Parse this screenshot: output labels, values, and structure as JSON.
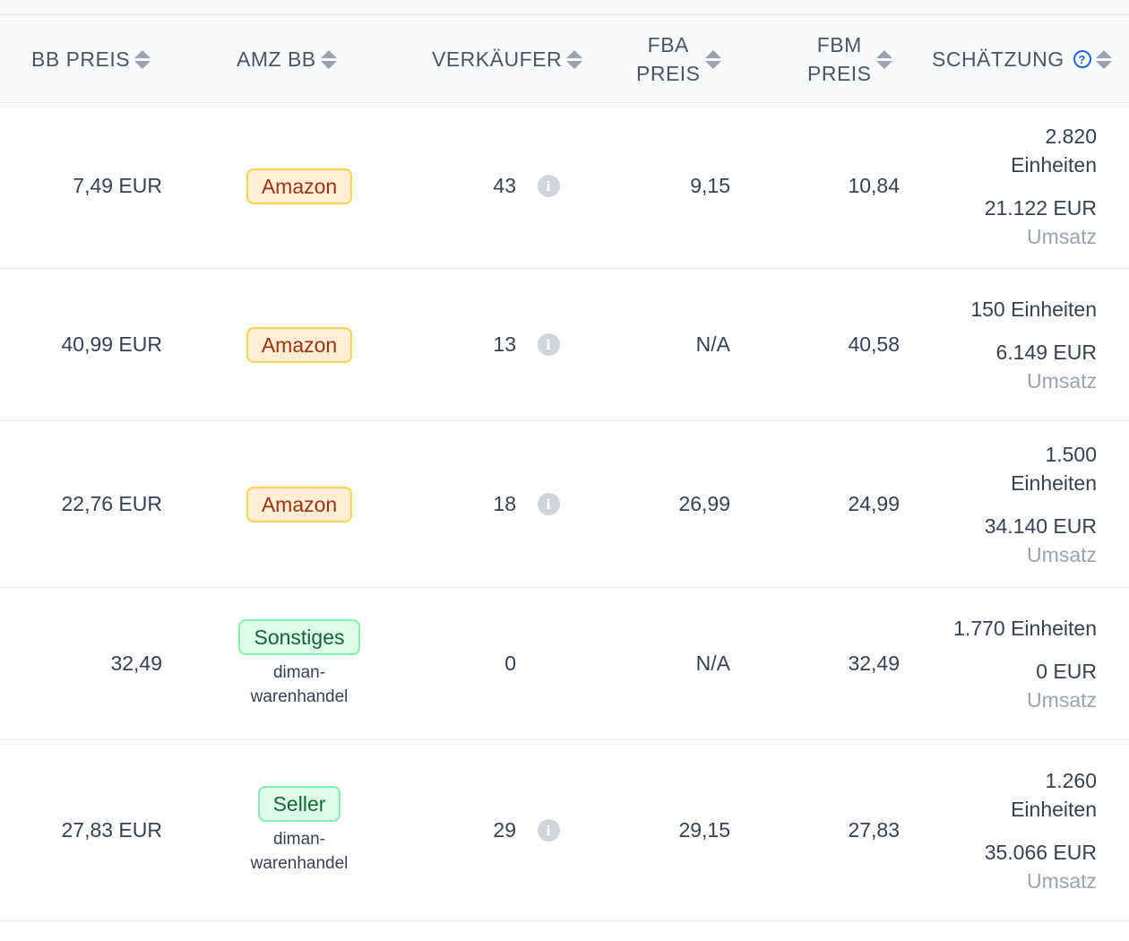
{
  "columns": {
    "bb_preis": "BB PREIS",
    "amz_bb": "AMZ BB",
    "verkaeufer": "VERKÄUFER",
    "fba_preis_1": "FBA",
    "fba_preis_2": "PREIS",
    "fbm_preis_1": "FBM",
    "fbm_preis_2": "PREIS",
    "schaetzung": "SCHÄTZUNG"
  },
  "rows": [
    {
      "bb_preis": "7,49 EUR",
      "amz_bb_badge": "Amazon",
      "amz_bb_type": "amazon",
      "amz_bb_seller_1": "",
      "amz_bb_seller_2": "",
      "verkaeufer": "43",
      "fba_preis": "9,15",
      "fbm_preis": "10,84",
      "units_1": "2.820",
      "units_2": "Einheiten",
      "revenue": "21.122 EUR",
      "revenue_label": "Umsatz"
    },
    {
      "bb_preis": "40,99 EUR",
      "amz_bb_badge": "Amazon",
      "amz_bb_type": "amazon",
      "amz_bb_seller_1": "",
      "amz_bb_seller_2": "",
      "verkaeufer": "13",
      "fba_preis": "N/A",
      "fbm_preis": "40,58",
      "units_1": "150 Einheiten",
      "units_2": "",
      "revenue": "6.149 EUR",
      "revenue_label": "Umsatz"
    },
    {
      "bb_preis": "22,76 EUR",
      "amz_bb_badge": "Amazon",
      "amz_bb_type": "amazon",
      "amz_bb_seller_1": "",
      "amz_bb_seller_2": "",
      "verkaeufer": "18",
      "fba_preis": "26,99",
      "fbm_preis": "24,99",
      "units_1": "1.500",
      "units_2": "Einheiten",
      "revenue": "34.140 EUR",
      "revenue_label": "Umsatz"
    },
    {
      "bb_preis": "32,49",
      "amz_bb_badge": "Sonstiges",
      "amz_bb_type": "green",
      "amz_bb_seller_1": "diman-",
      "amz_bb_seller_2": "warenhandel",
      "verkaeufer": "0",
      "fba_preis": "N/A",
      "fbm_preis": "32,49",
      "units_1": "1.770 Einheiten",
      "units_2": "",
      "revenue": "0 EUR",
      "revenue_label": "Umsatz"
    },
    {
      "bb_preis": "27,83 EUR",
      "amz_bb_badge": "Seller",
      "amz_bb_type": "green",
      "amz_bb_seller_1": "diman-",
      "amz_bb_seller_2": "warenhandel",
      "verkaeufer": "29",
      "fba_preis": "29,15",
      "fbm_preis": "27,83",
      "units_1": "1.260",
      "units_2": "Einheiten",
      "revenue": "35.066 EUR",
      "revenue_label": "Umsatz"
    }
  ],
  "icons": {
    "sort": "sort-arrows-icon",
    "help": "question-circle-icon",
    "info": "info-circle-icon"
  },
  "colors": {
    "amazon_badge_bg": "#ffedd5",
    "amazon_badge_text": "#9a3412",
    "green_badge_bg": "#dcfce7",
    "green_badge_text": "#166534",
    "help_icon": "#2563eb",
    "muted": "#9ca3af"
  }
}
